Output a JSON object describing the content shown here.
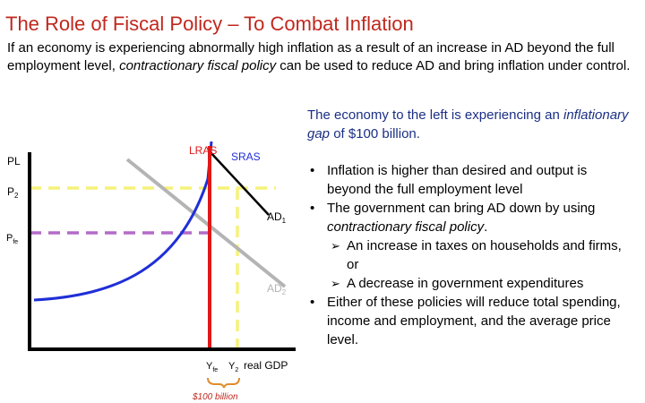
{
  "title": "The Role of Fiscal Policy – To Combat Inflation",
  "intro": {
    "part1": "If an economy is experiencing abnormally high inflation as a result of an increase in AD beyond the full employment level, ",
    "italic": "contractionary fiscal policy",
    "part2": " can be used to reduce AD and bring inflation under control."
  },
  "gap_note": {
    "part1": "The economy to the left is experiencing an ",
    "italic": "inflationary gap",
    "part2": " of $100 billion."
  },
  "bullets": {
    "b1": "Inflation is higher than desired and output is beyond the full employment level",
    "b2_part1": "The government can bring AD down by using ",
    "b2_italic": "contractionary fiscal policy",
    "b2_part2": ".",
    "sub1": "An increase in taxes on households and firms, or",
    "sub2": "A decrease in government expenditures",
    "b3": "Either of these policies will reduce total spending, income and employment, and the average price level."
  },
  "diagram": {
    "y_axis_label": "PL",
    "x_axis_label": "real GDP",
    "p2_label": "P",
    "p2_sub": "2",
    "pfe_label": "P",
    "pfe_sub": "fe",
    "yfe_label": "Y",
    "yfe_sub": "fe",
    "y2_label": "Y",
    "y2_sub": "2",
    "lras_label": "LRAS",
    "sras_label": "SRAS",
    "ad1_label": "AD",
    "ad1_sub": "1",
    "ad2_label": "AD",
    "ad2_sub": "2",
    "gap_label": "$100 billion",
    "colors": {
      "lras": "#e01818",
      "sras": "#1f2fd6",
      "ad1": "#000000",
      "ad2": "#b4b4b4",
      "p2_guide": "#f5f27a",
      "pfe_guide": "#b36bc8",
      "brace": "#e08c2c",
      "lras_label": "#e01818",
      "gap_label": "#c0281e",
      "title": "#c0281e",
      "note": "#1b2f85"
    }
  }
}
